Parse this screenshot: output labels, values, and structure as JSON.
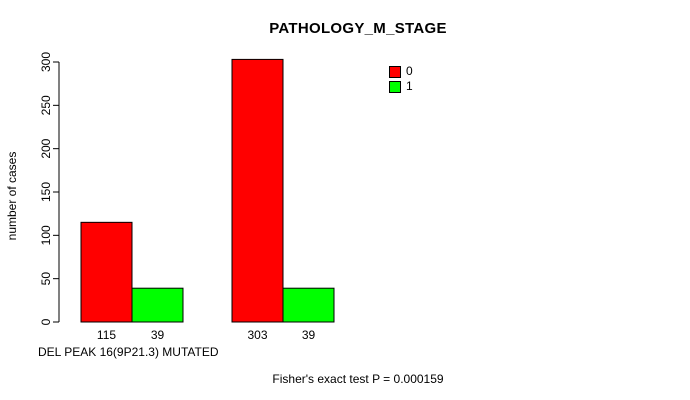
{
  "chart_data": {
    "type": "bar",
    "title": "PATHOLOGY_M_STAGE",
    "ylabel": "number of cases",
    "xlabel": "DEL PEAK 16(9P21.3) MUTATED",
    "annotation": "Fisher's exact test P = 0.000159",
    "ylim": [
      0,
      300
    ],
    "yticks": [
      0,
      50,
      100,
      150,
      200,
      250,
      300
    ],
    "series": [
      {
        "name": "0",
        "color": "#ff0000",
        "values": [
          115,
          303
        ]
      },
      {
        "name": "1",
        "color": "#00ff00",
        "values": [
          39,
          39
        ]
      }
    ],
    "bar_value_labels": [
      [
        115,
        39
      ],
      [
        303,
        39
      ]
    ],
    "legend": {
      "position": "top-right",
      "entries": [
        {
          "label": "0",
          "color": "#ff0000"
        },
        {
          "label": "1",
          "color": "#00ff00"
        }
      ]
    },
    "grid": false,
    "background": "#ffffff",
    "text_color": "#000000"
  }
}
